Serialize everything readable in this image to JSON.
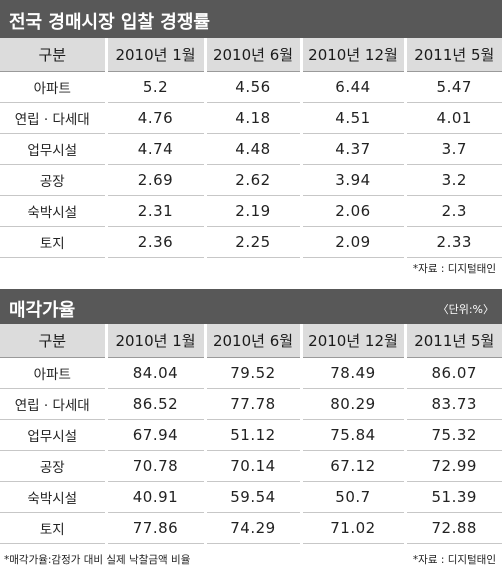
{
  "table1": {
    "title": "전국 경매시장 입찰 경쟁률",
    "headers": [
      "구분",
      "2010년 1월",
      "2010년 6월",
      "2010년 12월",
      "2011년 5월"
    ],
    "rows": [
      {
        "category": "아파트",
        "values": [
          "5.2",
          "4.56",
          "6.44",
          "5.47"
        ]
      },
      {
        "category": "연립 · 다세대",
        "values": [
          "4.76",
          "4.18",
          "4.51",
          "4.01"
        ]
      },
      {
        "category": "업무시설",
        "values": [
          "4.74",
          "4.48",
          "4.37",
          "3.7"
        ]
      },
      {
        "category": "공장",
        "values": [
          "2.69",
          "2.62",
          "3.94",
          "3.2"
        ]
      },
      {
        "category": "숙박시설",
        "values": [
          "2.31",
          "2.19",
          "2.06",
          "2.3"
        ]
      },
      {
        "category": "토지",
        "values": [
          "2.36",
          "2.25",
          "2.09",
          "2.33"
        ]
      }
    ],
    "source": "*자료 : 디지털태인"
  },
  "table2": {
    "title": "매각가율",
    "unit": "〈단위:%〉",
    "headers": [
      "구분",
      "2010년 1월",
      "2010년 6월",
      "2010년 12월",
      "2011년 5월"
    ],
    "rows": [
      {
        "category": "아파트",
        "values": [
          "84.04",
          "79.52",
          "78.49",
          "86.07"
        ]
      },
      {
        "category": "연립 · 다세대",
        "values": [
          "86.52",
          "77.78",
          "80.29",
          "83.73"
        ]
      },
      {
        "category": "업무시설",
        "values": [
          "67.94",
          "51.12",
          "75.84",
          "75.32"
        ]
      },
      {
        "category": "공장",
        "values": [
          "70.78",
          "70.14",
          "67.12",
          "72.99"
        ]
      },
      {
        "category": "숙박시설",
        "values": [
          "40.91",
          "59.54",
          "50.7",
          "51.39"
        ]
      },
      {
        "category": "토지",
        "values": [
          "77.86",
          "74.29",
          "71.02",
          "72.88"
        ]
      }
    ],
    "footnote": "*매각가율:감정가 대비 실제 낙찰금액 비율",
    "source": "*자료 : 디지털태인"
  }
}
